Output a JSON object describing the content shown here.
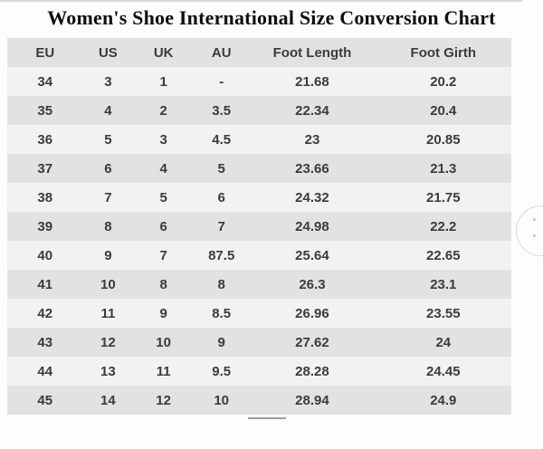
{
  "chart_data": {
    "type": "table",
    "title": "Women's Shoe International Size Conversion Chart",
    "columns": [
      "EU",
      "US",
      "UK",
      "AU",
      "Foot Length",
      "Foot Girth"
    ],
    "rows": [
      [
        "34",
        "3",
        "1",
        "-",
        "21.68",
        "20.2"
      ],
      [
        "35",
        "4",
        "2",
        "3.5",
        "22.34",
        "20.4"
      ],
      [
        "36",
        "5",
        "3",
        "4.5",
        "23",
        "20.85"
      ],
      [
        "37",
        "6",
        "4",
        "5",
        "23.66",
        "21.3"
      ],
      [
        "38",
        "7",
        "5",
        "6",
        "24.32",
        "21.75"
      ],
      [
        "39",
        "8",
        "6",
        "7",
        "24.98",
        "22.2"
      ],
      [
        "40",
        "9",
        "7",
        "87.5",
        "25.64",
        "22.65"
      ],
      [
        "41",
        "10",
        "8",
        "8",
        "26.3",
        "23.1"
      ],
      [
        "42",
        "11",
        "9",
        "8.5",
        "26.96",
        "23.55"
      ],
      [
        "43",
        "12",
        "10",
        "9",
        "27.62",
        "24"
      ],
      [
        "44",
        "13",
        "11",
        "9.5",
        "28.28",
        "24.45"
      ],
      [
        "45",
        "14",
        "12",
        "10",
        "28.94",
        "24.9"
      ]
    ]
  },
  "colors": {
    "header_row_bg": "#e3e2e0",
    "row_light_bg": "#f3f2f0",
    "row_dark_bg": "#e3e2e0",
    "cell_text": "#3b3b3b",
    "title_text": "#0f0f0f",
    "page_bg": "#fdfdfd",
    "top_line": "#d9d9d9",
    "dash": "#9e9e9e"
  }
}
